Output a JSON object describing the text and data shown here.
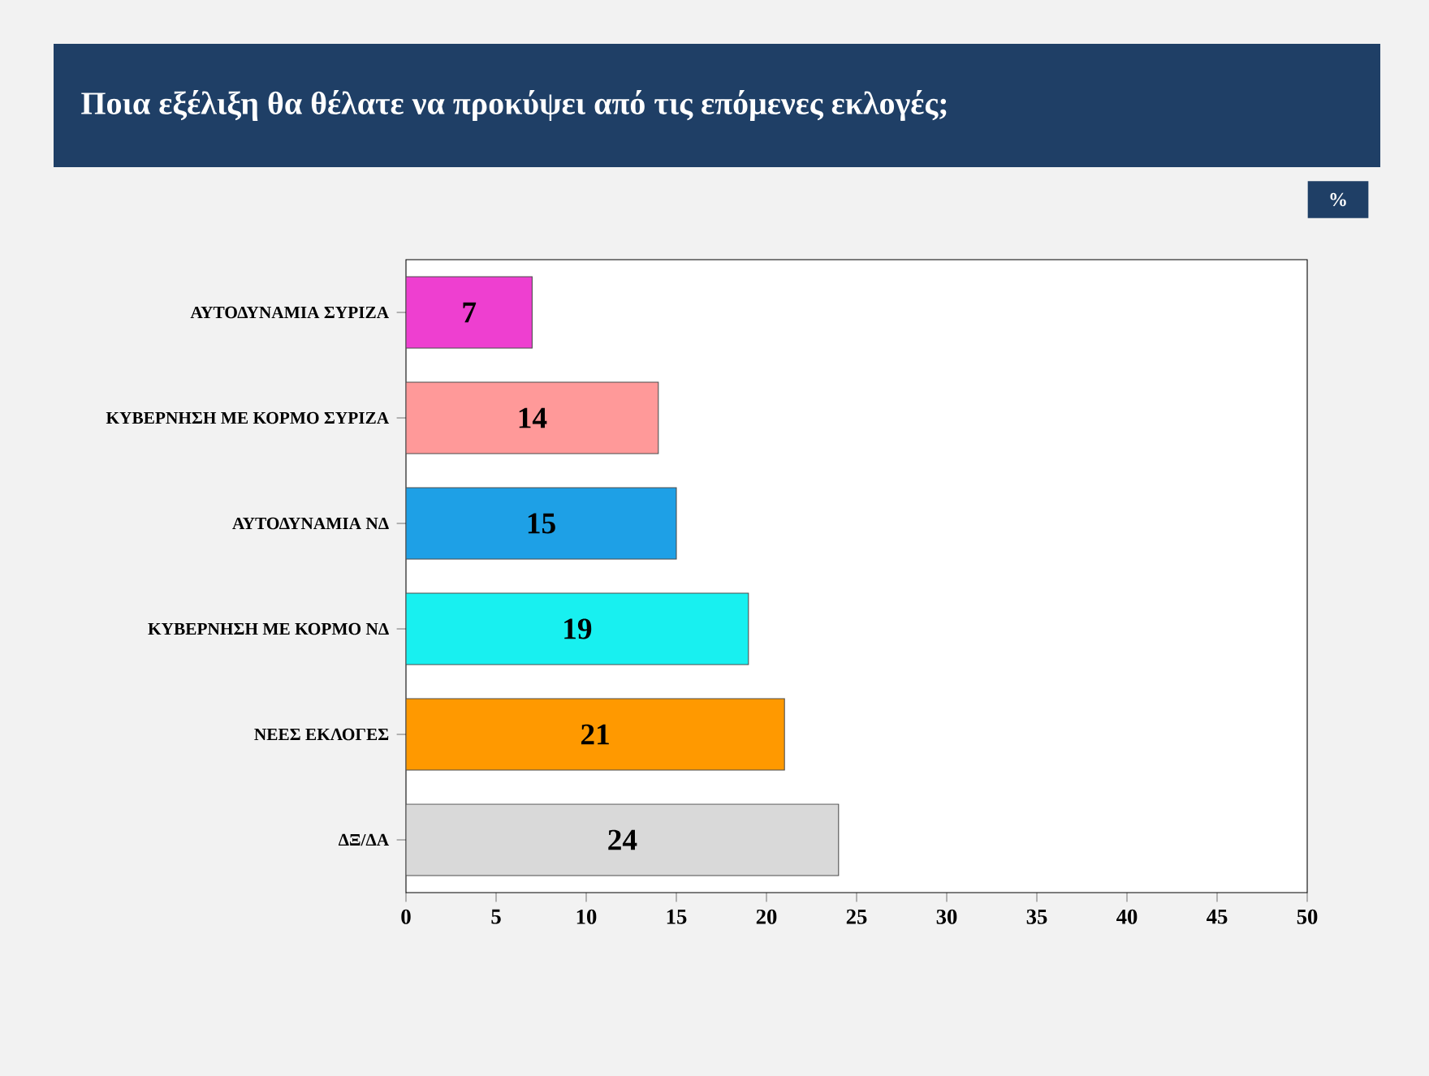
{
  "chart_data": {
    "type": "bar",
    "orientation": "horizontal",
    "title": "Ποια εξέλιξη θα θέλατε να προκύψει από τις επόμενες εκλογές;",
    "annotations": [
      "%"
    ],
    "categories": [
      "ΑΥΤΟΔΥΝΑΜΙΑ ΣΥΡΙΖΑ",
      "ΚΥΒΕΡΝΗΣΗ ΜΕ ΚΟΡΜΟ ΣΥΡΙΖΑ",
      "ΑΥΤΟΔΥΝΑΜΙΑ ΝΔ",
      "ΚΥΒΕΡΝΗΣΗ ΜΕ ΚΟΡΜΟ ΝΔ",
      "ΝΕΕΣ ΕΚΛΟΓΕΣ",
      "ΔΞ/ΔΑ"
    ],
    "values": [
      7,
      14,
      15,
      19,
      21,
      24
    ],
    "colors": [
      "#ee3fd0",
      "#ff9999",
      "#1ea0e6",
      "#18f0f0",
      "#ff9900",
      "#d9d9d9"
    ],
    "data_labels": true,
    "xlim": [
      0,
      50
    ],
    "xticks": [
      0,
      5,
      10,
      15,
      20,
      25,
      30,
      35,
      40,
      45,
      50
    ],
    "grid": false
  }
}
